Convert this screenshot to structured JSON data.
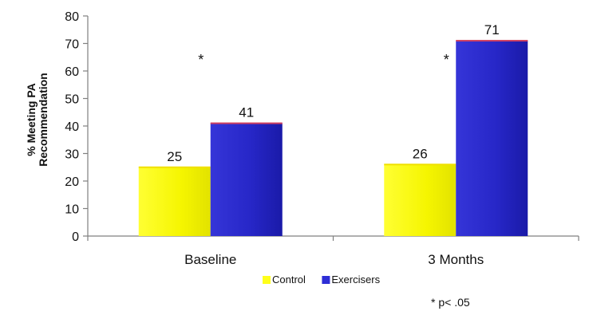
{
  "chart_data": {
    "type": "bar",
    "title": "",
    "xlabel": "",
    "ylabel_lines": [
      "% Meeting PA",
      "Recommendation"
    ],
    "ylim": [
      0,
      80
    ],
    "yticks": [
      0,
      10,
      20,
      30,
      40,
      50,
      60,
      70,
      80
    ],
    "categories": [
      "Baseline",
      "3 Months"
    ],
    "series": [
      {
        "name": "Control",
        "values": [
          25,
          26
        ],
        "color": "#ffff1a"
      },
      {
        "name": "Exercisers",
        "values": [
          41,
          71
        ],
        "color": "#2e2ed6"
      }
    ],
    "significance_marker": "*",
    "footnote": "* p< .05",
    "legend_position": "bottom-center",
    "grid": false
  }
}
